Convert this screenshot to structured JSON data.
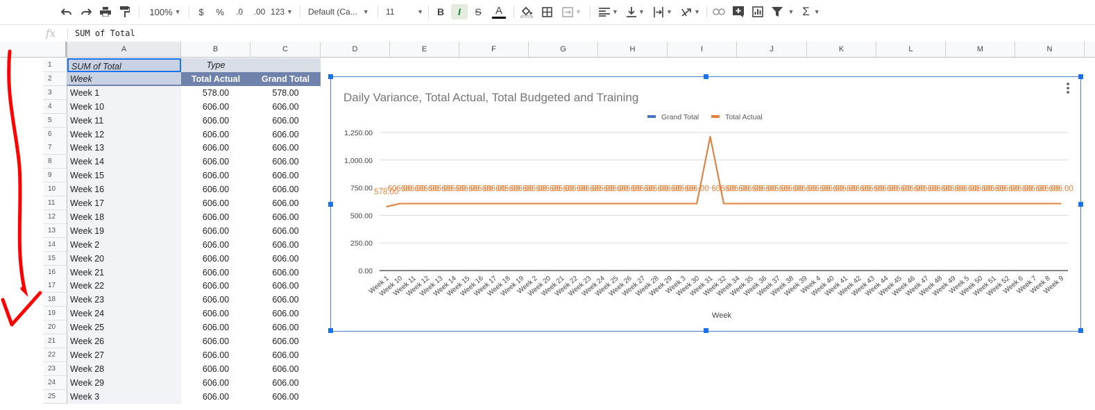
{
  "toolbar": {
    "zoom": "100%",
    "currency": "$",
    "percent": "%",
    "dec_decrease": ".0",
    "dec_increase": ".00",
    "format_more": "123",
    "font": "Default (Ca...",
    "font_size": "11",
    "bold": "B",
    "italic": "I",
    "strike": "S",
    "text_color": "A",
    "sum": "Σ"
  },
  "formula_bar": {
    "fx": "fx",
    "value": "SUM of Total"
  },
  "columns": [
    "A",
    "B",
    "C",
    "D",
    "E",
    "F",
    "G",
    "H",
    "I",
    "J",
    "K",
    "L",
    "M",
    "N"
  ],
  "rows": [
    {
      "n": "1",
      "a": "SUM of Total",
      "b": "Type",
      "c": ""
    },
    {
      "n": "2",
      "a": "Week",
      "b": "Total Actual",
      "c": "Grand Total"
    },
    {
      "n": "3",
      "a": "Week 1",
      "b": "578.00",
      "c": "578.00"
    },
    {
      "n": "4",
      "a": "Week 10",
      "b": "606.00",
      "c": "606.00"
    },
    {
      "n": "5",
      "a": "Week 11",
      "b": "606.00",
      "c": "606.00"
    },
    {
      "n": "6",
      "a": "Week 12",
      "b": "606.00",
      "c": "606.00"
    },
    {
      "n": "7",
      "a": "Week 13",
      "b": "606.00",
      "c": "606.00"
    },
    {
      "n": "8",
      "a": "Week 14",
      "b": "606.00",
      "c": "606.00"
    },
    {
      "n": "9",
      "a": "Week 15",
      "b": "606.00",
      "c": "606.00"
    },
    {
      "n": "10",
      "a": "Week 16",
      "b": "606.00",
      "c": "606.00"
    },
    {
      "n": "11",
      "a": "Week 17",
      "b": "606.00",
      "c": "606.00"
    },
    {
      "n": "12",
      "a": "Week 18",
      "b": "606.00",
      "c": "606.00"
    },
    {
      "n": "13",
      "a": "Week 19",
      "b": "606.00",
      "c": "606.00"
    },
    {
      "n": "14",
      "a": "Week 2",
      "b": "606.00",
      "c": "606.00"
    },
    {
      "n": "15",
      "a": "Week 20",
      "b": "606.00",
      "c": "606.00"
    },
    {
      "n": "16",
      "a": "Week 21",
      "b": "606.00",
      "c": "606.00"
    },
    {
      "n": "17",
      "a": "Week 22",
      "b": "606.00",
      "c": "606.00"
    },
    {
      "n": "18",
      "a": "Week 23",
      "b": "606.00",
      "c": "606.00"
    },
    {
      "n": "19",
      "a": "Week 24",
      "b": "606.00",
      "c": "606.00"
    },
    {
      "n": "20",
      "a": "Week 25",
      "b": "606.00",
      "c": "606.00"
    },
    {
      "n": "21",
      "a": "Week 26",
      "b": "606.00",
      "c": "606.00"
    },
    {
      "n": "22",
      "a": "Week 27",
      "b": "606.00",
      "c": "606.00"
    },
    {
      "n": "23",
      "a": "Week 28",
      "b": "606.00",
      "c": "606.00"
    },
    {
      "n": "24",
      "a": "Week 29",
      "b": "606.00",
      "c": "606.00"
    },
    {
      "n": "25",
      "a": "Week 3",
      "b": "606.00",
      "c": "606.00"
    }
  ],
  "colors": {
    "grand_total": "#4472c4",
    "total_actual": "#e6833a",
    "header_fill": "#6f82ab",
    "annotation_arrow": "#ff0000",
    "selection": "#1a73e8"
  },
  "chart_data": {
    "type": "line",
    "title": "Daily Variance, Total Actual, Total Budgeted and Training",
    "xlabel": "Week",
    "ylabel": "",
    "ylim": [
      0,
      1250
    ],
    "yticks": [
      "0.00",
      "250.00",
      "500.00",
      "750.00",
      "1,000.00",
      "1,250.00"
    ],
    "legend_position": "top",
    "categories": [
      "Week 1",
      "Week 10",
      "Week 11",
      "Week 12",
      "Week 13",
      "Week 14",
      "Week 15",
      "Week 16",
      "Week 17",
      "Week 18",
      "Week 19",
      "Week 2",
      "Week 20",
      "Week 21",
      "Week 22",
      "Week 23",
      "Week 24",
      "Week 25",
      "Week 26",
      "Week 27",
      "Week 28",
      "Week 29",
      "Week 3",
      "Week 30",
      "Week 31",
      "Week 32",
      "Week 34",
      "Week 35",
      "Week 36",
      "Week 37",
      "Week 38",
      "Week 39",
      "Week 4",
      "Week 40",
      "Week 41",
      "Week 42",
      "Week 43",
      "Week 44",
      "Week 45",
      "Week 46",
      "Week 47",
      "Week 48",
      "Week 49",
      "Week 5",
      "Week 50",
      "Week 51",
      "Week 52",
      "Week 6",
      "Week 7",
      "Week 8",
      "Week 9"
    ],
    "series": [
      {
        "name": "Grand Total",
        "values": [
          578,
          606,
          606,
          606,
          606,
          606,
          606,
          606,
          606,
          606,
          606,
          606,
          606,
          606,
          606,
          606,
          606,
          606,
          606,
          606,
          606,
          606,
          606,
          606,
          1212,
          606,
          606,
          606,
          606,
          606,
          606,
          606,
          606,
          606,
          606,
          606,
          606,
          606,
          606,
          606,
          606,
          606,
          606,
          606,
          606,
          606,
          606,
          606,
          606,
          606,
          606
        ]
      },
      {
        "name": "Total Actual",
        "values": [
          578,
          606,
          606,
          606,
          606,
          606,
          606,
          606,
          606,
          606,
          606,
          606,
          606,
          606,
          606,
          606,
          606,
          606,
          606,
          606,
          606,
          606,
          606,
          606,
          1212,
          606,
          606,
          606,
          606,
          606,
          606,
          606,
          606,
          606,
          606,
          606,
          606,
          606,
          606,
          606,
          606,
          606,
          606,
          606,
          606,
          606,
          606,
          606,
          606,
          606,
          606
        ]
      }
    ],
    "data_labels": [
      "578.00",
      "606.00",
      "606.00",
      "606.00",
      "606.00",
      "606.00",
      "606.00",
      "606.00",
      "606.00",
      "606.00",
      "606.00",
      "606.00",
      "606.00",
      "606.00",
      "606.00",
      "606.00",
      "606.00",
      "606.00",
      "606.00",
      "606.00",
      "606.00",
      "606.00",
      "606.00",
      "606.00",
      "",
      "606.00",
      "606.00",
      "606.00",
      "606.00",
      "606.00",
      "606.00",
      "606.00",
      "606.00",
      "606.00",
      "606.00",
      "606.00",
      "606.00",
      "606.00",
      "606.00",
      "606.00",
      "606.00",
      "606.00",
      "606.00",
      "606.00",
      "606.00",
      "606.00",
      "606.00",
      "606.00",
      "606.00",
      "606.00",
      "606.00"
    ]
  }
}
